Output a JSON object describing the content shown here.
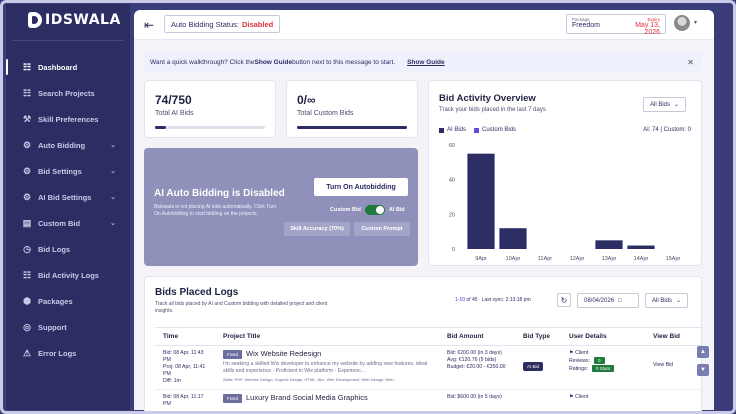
{
  "brand": {
    "name": "IDSWALA"
  },
  "sidebar": {
    "items": [
      {
        "label": "Dashboard",
        "icon": "grid-icon",
        "glyph": "☷",
        "active": true,
        "chevron": false
      },
      {
        "label": "Search Projects",
        "icon": "search-projects-icon",
        "glyph": "☷",
        "active": false,
        "chevron": false
      },
      {
        "label": "Skill Preferences",
        "icon": "tools-icon",
        "glyph": "⚒",
        "active": false,
        "chevron": false
      },
      {
        "label": "Auto Bidding",
        "icon": "gear-icon",
        "glyph": "⚙",
        "active": false,
        "chevron": true
      },
      {
        "label": "Bid Settings",
        "icon": "gear-icon",
        "glyph": "⚙",
        "active": false,
        "chevron": true
      },
      {
        "label": "AI Bid Settings",
        "icon": "gear-icon",
        "glyph": "⚙",
        "active": false,
        "chevron": true
      },
      {
        "label": "Custom Bid",
        "icon": "folder-icon",
        "glyph": "▤",
        "active": false,
        "chevron": true
      },
      {
        "label": "Bid Logs",
        "icon": "clock-icon",
        "glyph": "◷",
        "active": false,
        "chevron": false
      },
      {
        "label": "Bid Activity Logs",
        "icon": "activity-icon",
        "glyph": "☷",
        "active": false,
        "chevron": false
      },
      {
        "label": "Packages",
        "icon": "package-icon",
        "glyph": "⬢",
        "active": false,
        "chevron": false
      },
      {
        "label": "Support",
        "icon": "support-icon",
        "glyph": "◎",
        "active": false,
        "chevron": false
      },
      {
        "label": "Error Logs",
        "icon": "warning-icon",
        "glyph": "⚠",
        "active": false,
        "chevron": false
      }
    ]
  },
  "topbar": {
    "status_label": "Auto Bidding Status:",
    "status_value": "Disabled",
    "package_label": "Package",
    "package_value": "Freedom",
    "expiry_label": "Expiry",
    "expiry_value": "May 13, 2026"
  },
  "walkthrough": {
    "text_before": "Want a quick walkthrough? Click the ",
    "text_bold": "Show Guide",
    "text_after": " button next to this message to start.",
    "link": "Show Guide"
  },
  "stats": [
    {
      "value": "74/750",
      "label": "Total AI Bids",
      "progress": 0.099
    },
    {
      "value": "0/∞",
      "label": "Total Custom Bids",
      "progress": 1.0
    }
  ],
  "auto_bidding": {
    "title": "AI Auto Bidding is Disabled",
    "description": "Bidswala is not placing AI bids automatically. Click Turn On Autobidding to start bidding on the projects.",
    "button": "Turn On Autobidding",
    "toggle_left": "Custom Bid",
    "toggle_right": "AI Bid",
    "accuracy": "Skill Accuracy (70%)",
    "custom_prompt": "Custom Prompt"
  },
  "activity": {
    "title": "Bid Activity Overview",
    "subtitle": "Track your bids placed in the last 7 days",
    "filter": "All Bids",
    "summary": "AI: 74 | Custom: 0",
    "colors": {
      "ai": "#2c2d63",
      "custom": "#5a4fd6"
    }
  },
  "chart_data": {
    "type": "bar",
    "categories": [
      "9Apr",
      "10Apr",
      "11Apr",
      "12Apr",
      "13Apr",
      "14Apr",
      "15Apr"
    ],
    "series": [
      {
        "name": "AI Bids",
        "values": [
          55,
          12,
          0,
          0,
          5,
          2,
          0
        ]
      },
      {
        "name": "Custom Bids",
        "values": [
          0,
          0,
          0,
          0,
          0,
          0,
          0
        ]
      }
    ],
    "yticks": [
      0,
      20,
      40,
      60
    ],
    "ylim": [
      0,
      60
    ],
    "legend": "top-left"
  },
  "logs": {
    "title": "Bids Placed Logs",
    "subtitle": "Track all bids placed by AI and Custom bidding with detailed project and client insights.",
    "range": "1-10",
    "range_of": " of 45",
    "last_sync": "Last sync: 2:13:18 pm",
    "date_placeholder": "08/04/2026",
    "filter": "All Bids",
    "columns": [
      "Time",
      "Project Title",
      "Bid Amount",
      "Bid Type",
      "User Details",
      "View Bid"
    ],
    "rows": [
      {
        "time1": "Bid: 08 Apr, 11:43 PM",
        "time2": "Proj: 08 Apr, 11:41 PM",
        "time3": "Diff: 1m",
        "tag": "Fixed",
        "title": "Wix Website Redesign",
        "desc": "I'm seeking a skilled Wix developer to enhance my website by adding new features, ideal skills and experience - Proficient in Wix platform - Experienc...",
        "skills": "Skills: PHP, Website Design, Graphic Design, HTML, Wix, Web Development, Web Design, Web...",
        "bid": "Bid: €200.00 (in 3 days)",
        "avg": "Avg: €120.76 (9 bids)",
        "budget": "Budget: €20.00 - €350.00",
        "type": "AI Bid",
        "client": "Client",
        "reviews_label": "Reviews:",
        "reviews": "0",
        "ratings_label": "Ratings:",
        "ratings": "0 Stars",
        "view": "View Bid"
      },
      {
        "time1": "Bid: 08 Apr, 11:17 PM",
        "time2": "",
        "time3": "",
        "tag": "Fixed",
        "title": "Luxury Brand Social Media Graphics",
        "desc": "",
        "skills": "",
        "bid": "Bid: $600.00 (in 5 days)",
        "avg": "",
        "budget": "",
        "type": "",
        "client": "Client",
        "reviews_label": "",
        "reviews": "",
        "ratings_label": "",
        "ratings": "",
        "view": ""
      }
    ]
  }
}
